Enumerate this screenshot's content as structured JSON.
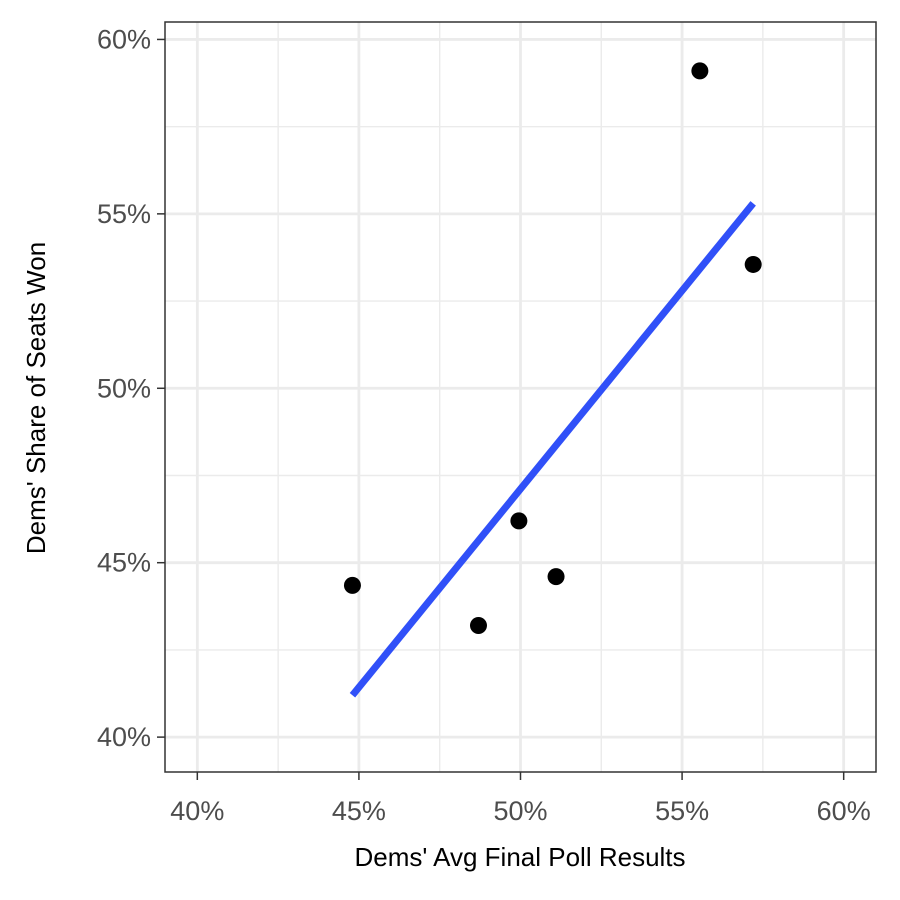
{
  "chart_data": {
    "type": "scatter",
    "title": "",
    "xlabel": "Dems' Avg Final Poll Results",
    "ylabel": "Dems' Share of Seats Won",
    "xlim": [
      0.39,
      0.61
    ],
    "ylim": [
      0.39,
      0.605
    ],
    "x_ticks": [
      0.4,
      0.45,
      0.5,
      0.55,
      0.6
    ],
    "x_tick_labels": [
      "40%",
      "45%",
      "50%",
      "55%",
      "60%"
    ],
    "y_ticks": [
      0.4,
      0.45,
      0.5,
      0.55,
      0.6
    ],
    "y_tick_labels": [
      "40%",
      "45%",
      "50%",
      "55%",
      "60%"
    ],
    "grid": true,
    "points": [
      {
        "x": 0.448,
        "y": 0.4435
      },
      {
        "x": 0.487,
        "y": 0.432
      },
      {
        "x": 0.4995,
        "y": 0.462
      },
      {
        "x": 0.511,
        "y": 0.446
      },
      {
        "x": 0.5555,
        "y": 0.591
      },
      {
        "x": 0.572,
        "y": 0.5355
      }
    ],
    "trend_line": {
      "x": [
        0.448,
        0.572
      ],
      "y": [
        0.412,
        0.553
      ]
    },
    "colors": {
      "points": "#000000",
      "trend_line": "#3050f8",
      "grid": "#ebebeb",
      "panel_border": "#333333",
      "tick_label": "#4d4d4d"
    }
  }
}
